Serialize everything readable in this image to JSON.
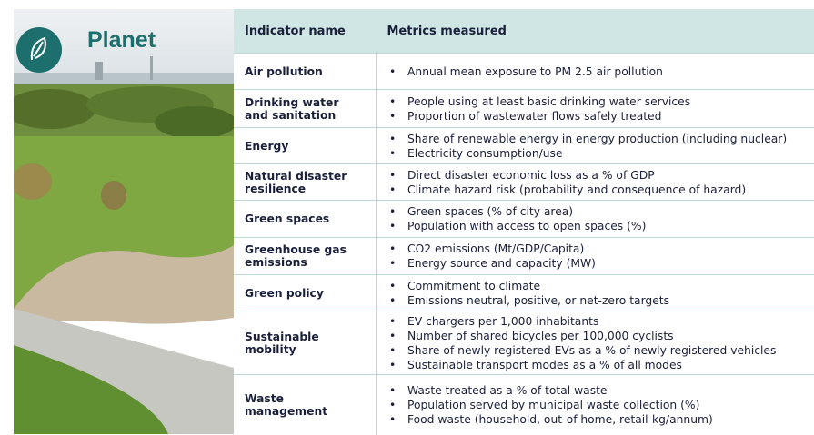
{
  "header": {
    "title": "Planet"
  },
  "table": {
    "columns": [
      "Indicator name",
      "Metrics measured"
    ],
    "rows": [
      {
        "name": "Air pollution",
        "metrics": [
          "Annual mean exposure to PM 2.5 air pollution"
        ]
      },
      {
        "name": "Drinking water and sanitation",
        "metrics": [
          "People using at least basic drinking water services",
          "Proportion of wastewater flows safely treated"
        ]
      },
      {
        "name": "Energy",
        "metrics": [
          "Share of renewable energy in energy production (including nuclear)",
          "Electricity consumption/use"
        ]
      },
      {
        "name": "Natural disaster resilience",
        "metrics": [
          "Direct disaster economic loss as a % of GDP",
          "Climate hazard risk (probability and consequence of hazard)"
        ]
      },
      {
        "name": "Green spaces",
        "metrics": [
          "Green spaces (% of city area)",
          "Population with access to open spaces (%)"
        ]
      },
      {
        "name": "Greenhouse gas emissions",
        "metrics": [
          "CO2 emissions (Mt/GDP/Capita)",
          "Energy source and capacity (MW)"
        ]
      },
      {
        "name": "Green policy",
        "metrics": [
          "Commitment to climate",
          "Emissions neutral, positive, or net-zero targets"
        ]
      },
      {
        "name": "Sustainable mobility",
        "metrics": [
          "EV chargers per 1,000 inhabitants",
          "Number of shared bicycles per 100,000 cyclists",
          "Share of newly registered EVs as a % of newly registered vehicles",
          "Sustainable transport modes as a % of all modes"
        ]
      },
      {
        "name": "Waste management",
        "metrics": [
          "Waste treated as a % of total waste",
          "Population served by municipal waste collection (%)",
          "Food waste (household, out-of-home, retail-kg/annum)"
        ]
      }
    ]
  }
}
